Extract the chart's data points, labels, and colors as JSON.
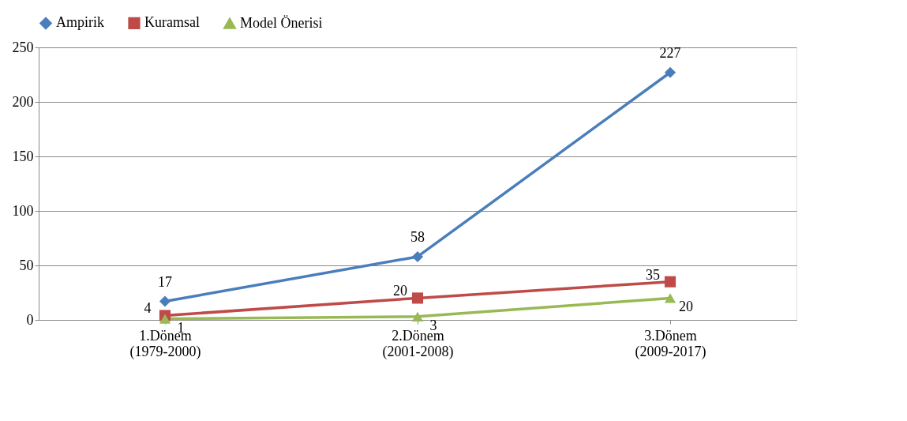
{
  "chart_data": {
    "type": "line",
    "categories": [
      "1.Dönem\n(1979-2000)",
      "2.Dönem\n(2001-2008)",
      "3.Dönem\n(2009-2017)"
    ],
    "series": [
      {
        "name": "Ampirik",
        "color": "#4a7ebb",
        "marker": "diamond",
        "values": [
          17,
          58,
          227
        ]
      },
      {
        "name": "Kuramsal",
        "color": "#be4b48",
        "marker": "square",
        "values": [
          4,
          20,
          35
        ]
      },
      {
        "name": "Model Önerisi",
        "color": "#98b954",
        "marker": "triangle",
        "values": [
          1,
          3,
          20
        ]
      }
    ],
    "ylim": [
      0,
      250
    ],
    "yticks": [
      0,
      50,
      100,
      150,
      200,
      250
    ],
    "grid": "y",
    "legend": "top",
    "data_labels": true,
    "line_style": "solid"
  }
}
